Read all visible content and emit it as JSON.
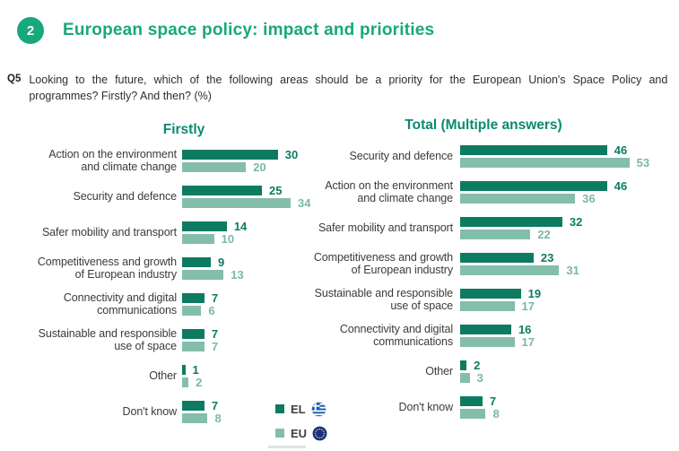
{
  "page": {
    "section_number": "2",
    "section_title": "European space policy: impact and priorities",
    "question_id": "Q5",
    "question_line1": "Looking to the future, which of the following areas should be a priority for the European Union's Space Policy and",
    "question_line2": "programmes? Firstly? And then? (%)"
  },
  "colors": {
    "accent_green": "#17a87b",
    "chart_title_teal": "#0a8a72",
    "el_bar": "#0d7b62",
    "eu_bar": "#85bdab",
    "label_text": "#3b3b3b"
  },
  "legend": {
    "items": [
      {
        "label": "EL",
        "flag": "greece-flag",
        "swatch": "#0d7b62"
      },
      {
        "label": "EU",
        "flag": "eu-flag",
        "swatch": "#85bdab"
      }
    ]
  },
  "chart_data": [
    {
      "type": "bar",
      "orientation": "horizontal",
      "title": "Firstly",
      "value_unit": "%",
      "grid": false,
      "xlim": [
        0,
        60
      ],
      "legend_position": "bottom-center",
      "categories": [
        "Action on the environment\nand climate change",
        "Security and defence",
        "Safer mobility and transport",
        "Competitiveness and growth\nof European industry",
        "Connectivity and digital\ncommunications",
        "Sustainable and responsible\nuse of space",
        "Other",
        "Don't know"
      ],
      "series": [
        {
          "name": "EL",
          "values": [
            30,
            25,
            14,
            9,
            7,
            7,
            1,
            7
          ]
        },
        {
          "name": "EU",
          "values": [
            20,
            34,
            10,
            13,
            6,
            7,
            2,
            8
          ]
        }
      ]
    },
    {
      "type": "bar",
      "orientation": "horizontal",
      "title": "Total (Multiple answers)",
      "value_unit": "%",
      "grid": false,
      "xlim": [
        0,
        60
      ],
      "categories": [
        "Security and defence",
        "Action on the environment\nand climate change",
        "Safer mobility and transport",
        "Competitiveness and growth\nof European industry",
        "Sustainable and responsible\nuse of space",
        "Connectivity and digital\ncommunications",
        "Other",
        "Don't know"
      ],
      "series": [
        {
          "name": "EL",
          "values": [
            46,
            46,
            32,
            23,
            19,
            16,
            2,
            7
          ]
        },
        {
          "name": "EU",
          "values": [
            53,
            36,
            22,
            31,
            17,
            17,
            3,
            8
          ]
        }
      ]
    }
  ]
}
